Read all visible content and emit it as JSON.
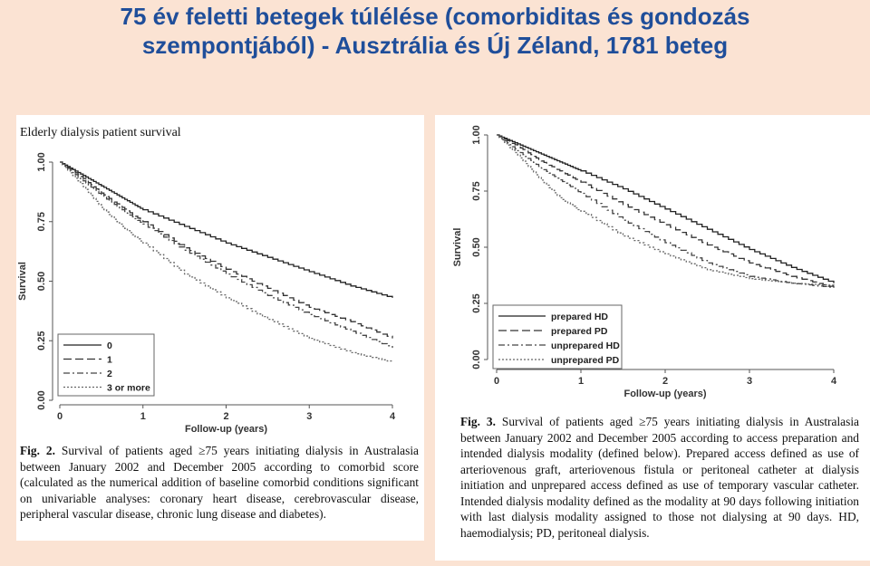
{
  "slide": {
    "title_line1": "75 év feletti betegek túlélése (comorbiditas és gondozás",
    "title_line2": "szempontjából) - Ausztrália és Új Zéland, 1781 beteg",
    "title_color": "#1f4e9a",
    "background": "#fbe3d3"
  },
  "figure1": {
    "panel_title": "Elderly dialysis patient survival",
    "caption_label": "Fig. 2.",
    "caption_text": "Survival of patients aged ≥75 years initiating dialysis in Australasia between January 2002 and December 2005 according to comorbid score (calculated as the numerical addition of baseline comorbid conditions significant on univariable analyses: coronary heart disease, cerebrovascular disease, peripheral vascular disease, chronic lung disease and diabetes)."
  },
  "figure2": {
    "caption_label": "Fig. 3.",
    "caption_text": "Survival of patients aged ≥75 years initiating dialysis in Australasia between January 2002 and December 2005 according to access preparation and intended dialysis modality (defined below). Prepared access defined as use of arteriovenous graft, arteriovenous fistula or peritoneal catheter at dialysis initiation and unprepared access defined as use of temporary vascular catheter. Intended dialysis modality defined as the modality at 90 days following initiation with last dialysis modality assigned to those not dialysing at 90 days. HD, haemodialysis; PD, peritoneal dialysis."
  },
  "chart_data": [
    {
      "type": "line",
      "xlabel": "Follow-up (years)",
      "ylabel": "Survival",
      "xlim": [
        0,
        4
      ],
      "ylim": [
        0,
        1
      ],
      "x_ticks": [
        "0",
        "1",
        "2",
        "3",
        "4"
      ],
      "y_ticks": [
        "0.00",
        "0.25",
        "0.50",
        "0.75",
        "1.00"
      ],
      "legend_position": "bottom-left",
      "series": [
        {
          "name": "0",
          "style": "solid",
          "x": [
            0,
            0.25,
            0.5,
            0.75,
            1,
            1.5,
            2,
            2.5,
            3,
            3.5,
            4
          ],
          "y": [
            1.0,
            0.95,
            0.9,
            0.85,
            0.8,
            0.73,
            0.66,
            0.6,
            0.54,
            0.48,
            0.43
          ]
        },
        {
          "name": "1",
          "style": "dash",
          "x": [
            0,
            0.25,
            0.5,
            0.75,
            1,
            1.5,
            2,
            2.5,
            3,
            3.5,
            4
          ],
          "y": [
            1.0,
            0.94,
            0.87,
            0.81,
            0.75,
            0.64,
            0.55,
            0.47,
            0.39,
            0.33,
            0.26
          ]
        },
        {
          "name": "2",
          "style": "dashdot",
          "x": [
            0,
            0.25,
            0.5,
            0.75,
            1,
            1.5,
            2,
            2.5,
            3,
            3.5,
            4
          ],
          "y": [
            1.0,
            0.93,
            0.86,
            0.8,
            0.74,
            0.63,
            0.53,
            0.44,
            0.36,
            0.29,
            0.22
          ]
        },
        {
          "name": "3 or more",
          "style": "dotted",
          "x": [
            0,
            0.25,
            0.5,
            0.75,
            1,
            1.5,
            2,
            2.5,
            3,
            3.5,
            4
          ],
          "y": [
            1.0,
            0.91,
            0.81,
            0.73,
            0.66,
            0.53,
            0.43,
            0.34,
            0.26,
            0.2,
            0.16
          ]
        }
      ]
    },
    {
      "type": "line",
      "xlabel": "Follow-up (years)",
      "ylabel": "Survival",
      "xlim": [
        0,
        4
      ],
      "ylim": [
        0,
        1
      ],
      "x_ticks": [
        "0",
        "1",
        "2",
        "3",
        "4"
      ],
      "y_ticks": [
        "0.00",
        "0.25",
        "0.50",
        "0.75",
        "1.00"
      ],
      "legend_position": "bottom-left",
      "series": [
        {
          "name": "prepared HD",
          "style": "solid",
          "x": [
            0,
            0.25,
            0.5,
            0.75,
            1,
            1.5,
            2,
            2.5,
            3,
            3.5,
            4
          ],
          "y": [
            1.0,
            0.96,
            0.92,
            0.88,
            0.84,
            0.76,
            0.67,
            0.58,
            0.49,
            0.41,
            0.34
          ]
        },
        {
          "name": "prepared PD",
          "style": "dash",
          "x": [
            0,
            0.25,
            0.5,
            0.75,
            1,
            1.5,
            2,
            2.5,
            3,
            3.5,
            4
          ],
          "y": [
            1.0,
            0.95,
            0.89,
            0.84,
            0.79,
            0.69,
            0.6,
            0.51,
            0.43,
            0.37,
            0.32
          ]
        },
        {
          "name": "unprepared HD",
          "style": "dashdot",
          "x": [
            0,
            0.25,
            0.5,
            0.75,
            1,
            1.5,
            2,
            2.5,
            3,
            3.5,
            4
          ],
          "y": [
            1.0,
            0.93,
            0.86,
            0.8,
            0.74,
            0.62,
            0.52,
            0.43,
            0.37,
            0.34,
            0.32
          ]
        },
        {
          "name": "unprepared PD",
          "style": "dotted",
          "x": [
            0,
            0.25,
            0.5,
            0.75,
            1,
            1.5,
            2,
            2.5,
            3,
            3.5,
            4
          ],
          "y": [
            1.0,
            0.91,
            0.81,
            0.72,
            0.66,
            0.55,
            0.47,
            0.4,
            0.36,
            0.34,
            0.33
          ]
        }
      ]
    }
  ]
}
